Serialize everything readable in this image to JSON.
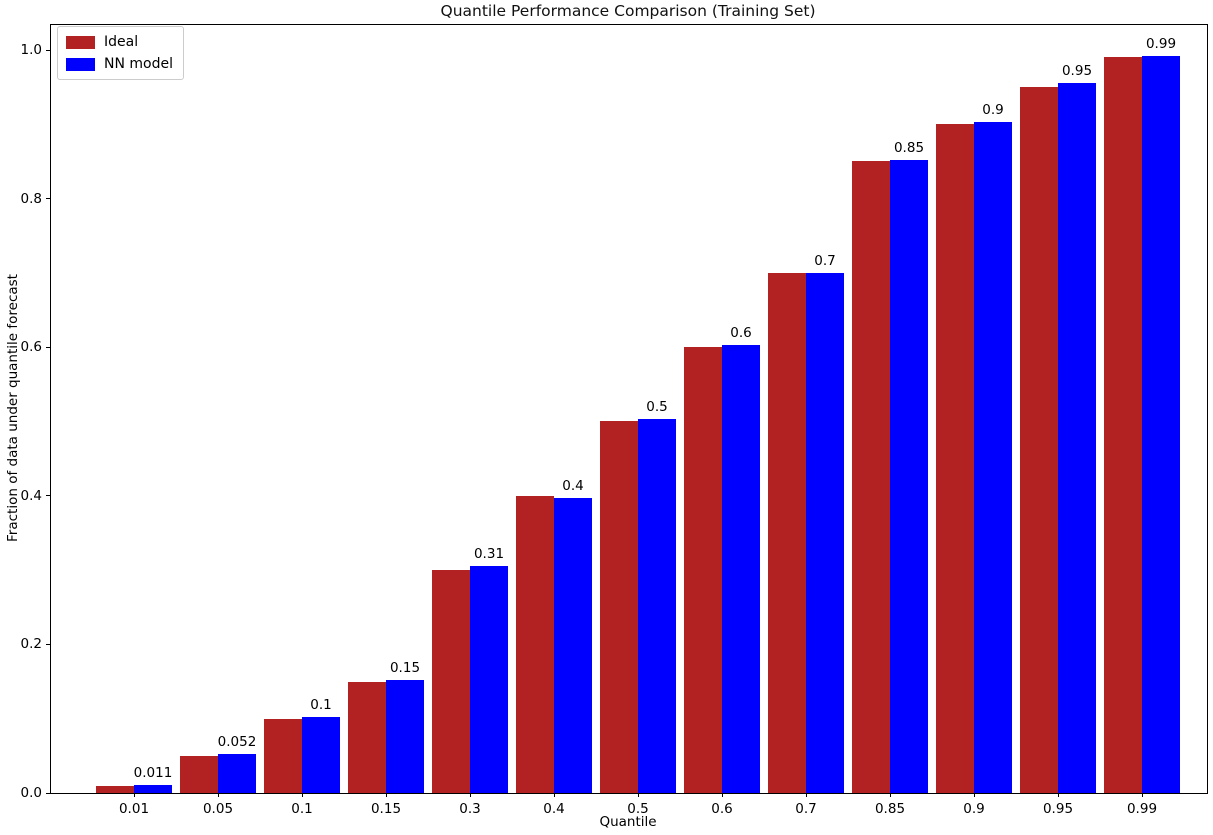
{
  "chart_data": {
    "type": "bar",
    "title": "Quantile Performance Comparison (Training Set)",
    "xlabel": "Quantile",
    "ylabel": "Fraction of data under quantile forecast",
    "categories": [
      "0.01",
      "0.05",
      "0.1",
      "0.15",
      "0.3",
      "0.4",
      "0.5",
      "0.6",
      "0.7",
      "0.85",
      "0.9",
      "0.95",
      "0.99"
    ],
    "series": [
      {
        "name": "Ideal",
        "color": "#B22222",
        "values": [
          0.01,
          0.05,
          0.1,
          0.15,
          0.3,
          0.4,
          0.5,
          0.6,
          0.7,
          0.85,
          0.9,
          0.95,
          0.99
        ]
      },
      {
        "name": "NN model",
        "color": "#0000FF",
        "values": [
          0.011,
          0.052,
          0.102,
          0.152,
          0.306,
          0.397,
          0.503,
          0.603,
          0.7,
          0.852,
          0.903,
          0.955,
          0.992
        ]
      }
    ],
    "bar_labels": [
      "0.011",
      "0.052",
      "0.1",
      "0.15",
      "0.31",
      "0.4",
      "0.5",
      "0.6",
      "0.7",
      "0.85",
      "0.9",
      "0.95",
      "0.99"
    ],
    "yticks": [
      "0.0",
      "0.2",
      "0.4",
      "0.6",
      "0.8",
      "1.0"
    ],
    "ytick_values": [
      0.0,
      0.2,
      0.4,
      0.6,
      0.8,
      1.0
    ],
    "ylim": [
      0.0,
      1.034
    ],
    "grid": false,
    "legend_position": "upper left",
    "text_color": "#000000",
    "background_color": "#ffffff"
  }
}
